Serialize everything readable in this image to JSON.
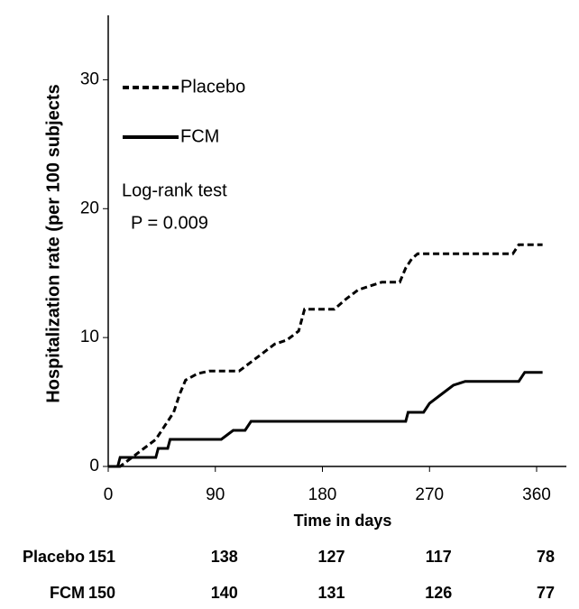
{
  "chart_data": {
    "type": "line",
    "ylabel": "Hospitalization rate (per 100 subjects",
    "xlabel": "Time in days",
    "xlim": [
      0,
      385
    ],
    "xticks": [
      0,
      90,
      180,
      270,
      360
    ],
    "ylim": [
      0,
      35
    ],
    "yticks": [
      0,
      10,
      20,
      30
    ],
    "legend": "upper left",
    "annotations": [
      "Log-rank test",
      "P = 0.009"
    ],
    "series": [
      {
        "name": "Placebo",
        "color": "#000000",
        "style": "dashed",
        "x": [
          0,
          10,
          20,
          30,
          40,
          50,
          55,
          60,
          65,
          75,
          85,
          110,
          120,
          130,
          140,
          150,
          160,
          165,
          190,
          200,
          210,
          220,
          230,
          245,
          250,
          255,
          260,
          340,
          345,
          365
        ],
        "values": [
          0,
          0,
          0.7,
          1.4,
          2.1,
          3.5,
          4.2,
          5.6,
          6.7,
          7.2,
          7.4,
          7.4,
          8.1,
          8.8,
          9.5,
          9.8,
          10.5,
          12.2,
          12.2,
          13,
          13.7,
          14,
          14.3,
          14.3,
          15.4,
          16.1,
          16.5,
          16.5,
          17.2,
          17.2
        ]
      },
      {
        "name": "FCM",
        "color": "#000000",
        "style": "solid",
        "x": [
          0,
          8,
          10,
          40,
          42,
          50,
          52,
          95,
          105,
          115,
          120,
          250,
          252,
          265,
          270,
          280,
          290,
          300,
          345,
          350,
          365
        ],
        "values": [
          0,
          0,
          0.7,
          0.7,
          1.4,
          1.4,
          2.1,
          2.1,
          2.8,
          2.8,
          3.5,
          3.5,
          4.2,
          4.2,
          4.9,
          5.6,
          6.3,
          6.6,
          6.6,
          7.3,
          7.3
        ]
      }
    ],
    "risk_table": [
      {
        "name": "Placebo",
        "values": [
          151,
          138,
          127,
          117,
          78
        ]
      },
      {
        "name": "FCM",
        "values": [
          150,
          140,
          131,
          126,
          77
        ]
      }
    ]
  }
}
